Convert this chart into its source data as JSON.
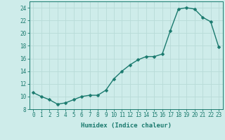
{
  "x": [
    0,
    1,
    2,
    3,
    4,
    5,
    6,
    7,
    8,
    9,
    10,
    11,
    12,
    13,
    14,
    15,
    16,
    17,
    18,
    19,
    20,
    21,
    22,
    23
  ],
  "y": [
    10.6,
    10.0,
    9.5,
    8.8,
    9.0,
    9.5,
    10.0,
    10.2,
    10.2,
    11.0,
    12.8,
    14.0,
    15.0,
    15.8,
    16.3,
    16.3,
    16.7,
    20.4,
    23.8,
    24.0,
    23.8,
    22.5,
    21.8,
    17.8
  ],
  "line_color": "#1a7a6e",
  "marker": "D",
  "markersize": 2.5,
  "bg_color": "#ceecea",
  "grid_color": "#b8dbd8",
  "xlabel": "Humidex (Indice chaleur)",
  "xlim": [
    -0.5,
    23.5
  ],
  "ylim": [
    8,
    25
  ],
  "yticks": [
    8,
    10,
    12,
    14,
    16,
    18,
    20,
    22,
    24
  ],
  "xticks": [
    0,
    1,
    2,
    3,
    4,
    5,
    6,
    7,
    8,
    9,
    10,
    11,
    12,
    13,
    14,
    15,
    16,
    17,
    18,
    19,
    20,
    21,
    22,
    23
  ],
  "label_fontsize": 6.5,
  "tick_fontsize": 5.5
}
